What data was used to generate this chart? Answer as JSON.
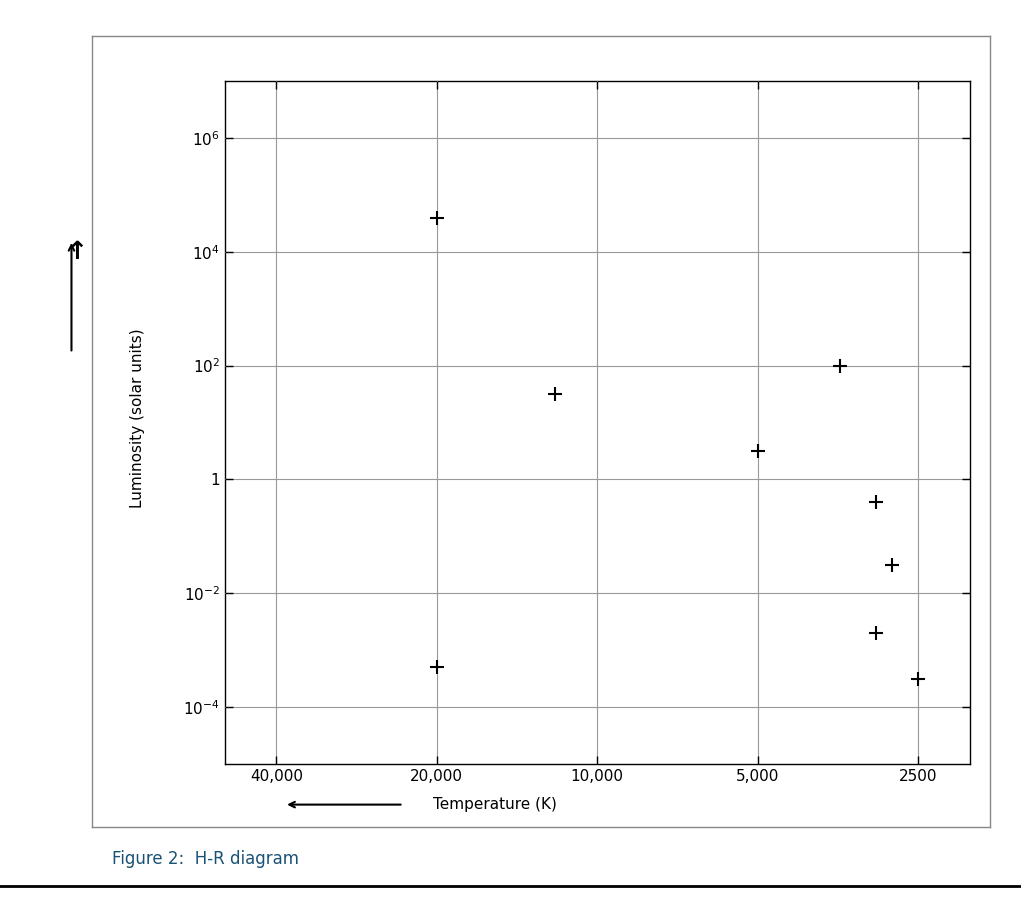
{
  "points_temp": [
    20000,
    12000,
    5000,
    3500,
    3000,
    2800,
    20000,
    3000,
    2500
  ],
  "points_lum": [
    4.6,
    1.5,
    0.5,
    2.0,
    -0.4,
    -1.5,
    -3.3,
    -2.7,
    -3.5
  ],
  "x_ticks": [
    40000,
    20000,
    10000,
    5000,
    2500
  ],
  "x_tick_labels": [
    "40,000",
    "20,000",
    "10,000",
    "5,000",
    "2500"
  ],
  "y_ticks": [
    -4,
    -2,
    0,
    2,
    4,
    6
  ],
  "y_tick_labels": [
    "-4",
    "-2",
    "1",
    "2",
    "4",
    "6"
  ],
  "x_lim_left": 50000,
  "x_lim_right": 2000,
  "y_lim_bottom": -5,
  "y_lim_top": 7,
  "xlabel": "Temperature (K)",
  "ylabel": "Luminosity (solar units)",
  "figure_caption": "Figure 2:  H-R diagram",
  "caption_color": "#1a5276",
  "grid_color": "#999999",
  "point_color": "#000000",
  "point_marker": "+",
  "point_size": 10,
  "point_linewidth": 1.5,
  "bg_color": "#ffffff",
  "frame_color": "#cccccc"
}
